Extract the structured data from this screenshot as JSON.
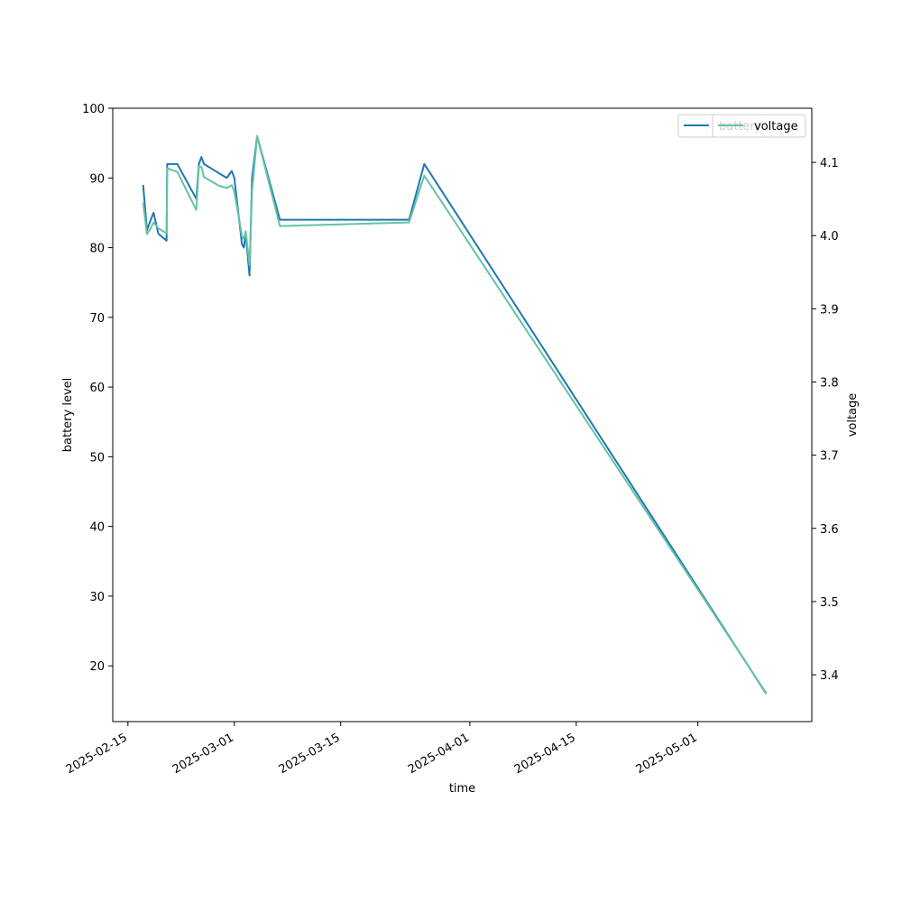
{
  "chart_data": {
    "type": "line",
    "xlabel": "time",
    "ylabel": "battery level",
    "y2label": "voltage",
    "x_ticks": [
      "2025-02-15",
      "2025-03-01",
      "2025-03-15",
      "2025-04-01",
      "2025-04-15",
      "2025-05-01"
    ],
    "y_ticks": [
      20,
      30,
      40,
      50,
      60,
      70,
      80,
      90,
      100
    ],
    "y2_ticks": [
      3.4,
      3.5,
      3.6,
      3.7,
      3.8,
      3.9,
      4.0,
      4.1
    ],
    "xlim": [
      "2025-02-13",
      "2025-05-16"
    ],
    "ylim": [
      12,
      100
    ],
    "y2lim": [
      3.336,
      4.174
    ],
    "grid": false,
    "legend": "top-right",
    "colors": {
      "battery": "#1f77b4",
      "voltage": "#66c2a5"
    },
    "series": [
      {
        "name": "battery",
        "axis": "left",
        "points": [
          [
            "2025-02-17",
            89
          ],
          [
            "2025-02-17T12:00",
            82.5
          ],
          [
            "2025-02-18",
            84
          ],
          [
            "2025-02-18T09:00",
            85
          ],
          [
            "2025-02-19",
            82
          ],
          [
            "2025-02-20T02:00",
            81
          ],
          [
            "2025-02-20T04:00",
            92
          ],
          [
            "2025-02-21T12:00",
            92
          ],
          [
            "2025-02-24",
            87
          ],
          [
            "2025-02-24T08:00",
            92
          ],
          [
            "2025-02-24T16:00",
            93
          ],
          [
            "2025-02-25",
            92
          ],
          [
            "2025-02-28",
            90
          ],
          [
            "2025-02-28T16:00",
            91
          ],
          [
            "2025-03-01",
            90
          ],
          [
            "2025-03-02",
            80.5
          ],
          [
            "2025-03-02T06:00",
            80
          ],
          [
            "2025-03-02T12:00",
            82
          ],
          [
            "2025-03-03",
            76
          ],
          [
            "2025-03-03T08:00",
            90
          ],
          [
            "2025-03-04",
            96
          ],
          [
            "2025-03-07",
            84
          ],
          [
            "2025-03-24",
            84
          ],
          [
            "2025-03-26",
            92
          ],
          [
            "2025-05-10",
            16
          ]
        ]
      },
      {
        "name": "voltage",
        "axis": "right",
        "points": [
          [
            "2025-02-17",
            4.045
          ],
          [
            "2025-02-17T12:00",
            4.002
          ],
          [
            "2025-02-18",
            4.01
          ],
          [
            "2025-02-18T09:00",
            4.018
          ],
          [
            "2025-02-19",
            4.01
          ],
          [
            "2025-02-20T02:00",
            4.003
          ],
          [
            "2025-02-20T04:00",
            4.092
          ],
          [
            "2025-02-21T12:00",
            4.087
          ],
          [
            "2025-02-24",
            4.035
          ],
          [
            "2025-02-24T08:00",
            4.095
          ],
          [
            "2025-02-24T16:00",
            4.094
          ],
          [
            "2025-02-25",
            4.08
          ],
          [
            "2025-02-27",
            4.068
          ],
          [
            "2025-02-28",
            4.065
          ],
          [
            "2025-02-28T16:00",
            4.069
          ],
          [
            "2025-03-01",
            4.06
          ],
          [
            "2025-03-02",
            4.0
          ],
          [
            "2025-03-02T06:00",
            3.995
          ],
          [
            "2025-03-02T12:00",
            4.006
          ],
          [
            "2025-03-03",
            3.96
          ],
          [
            "2025-03-03T08:00",
            4.06
          ],
          [
            "2025-03-04",
            4.136
          ],
          [
            "2025-03-07",
            4.013
          ],
          [
            "2025-03-24",
            4.018
          ],
          [
            "2025-03-26",
            4.082
          ],
          [
            "2025-05-10",
            3.375
          ]
        ]
      }
    ]
  }
}
